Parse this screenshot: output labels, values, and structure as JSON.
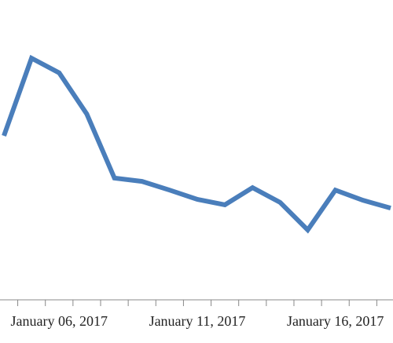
{
  "chart_data": {
    "type": "line",
    "categories": [
      null,
      null,
      "January 06, 2017",
      null,
      null,
      null,
      null,
      "January 11, 2017",
      null,
      null,
      null,
      null,
      "January 16, 2017",
      null,
      null
    ],
    "series": [
      {
        "color": "#4a7ebb",
        "values": [
          54.7,
          80.6,
          75.7,
          62.0,
          40.6,
          39.5,
          36.6,
          33.5,
          31.7,
          37.4,
          32.5,
          23.3,
          36.6,
          33.2,
          30.6
        ]
      }
    ],
    "ylim": [
      0,
      100
    ]
  }
}
